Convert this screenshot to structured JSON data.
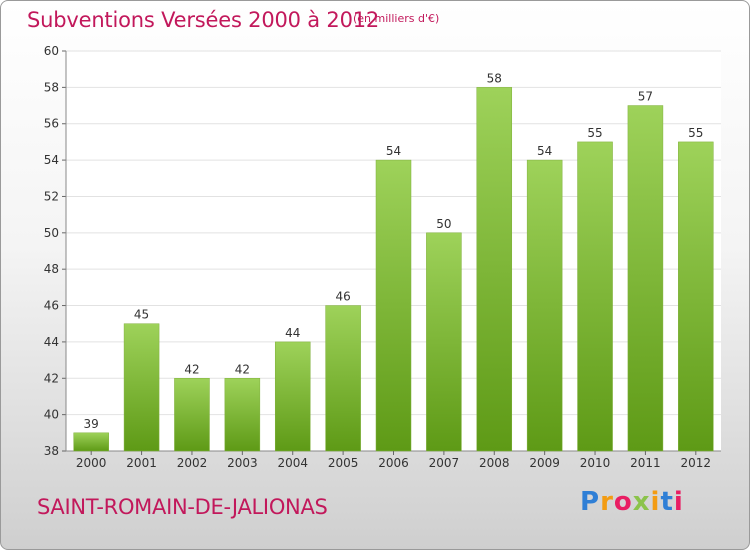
{
  "title": "Subventions Versées 2000 à 2012",
  "subtitle": "(en milliers d'€)",
  "town": "SAINT-ROMAIN-DE-JALIONAS",
  "logo": {
    "letters": [
      {
        "char": "P",
        "color": "#2f7fd6"
      },
      {
        "char": "r",
        "color": "#f39c12"
      },
      {
        "char": "o",
        "color": "#e91e63"
      },
      {
        "char": "x",
        "color": "#8bc34a"
      },
      {
        "char": "i",
        "color": "#f39c12"
      },
      {
        "char": "t",
        "color": "#2f7fd6"
      },
      {
        "char": "i",
        "color": "#e91e63"
      }
    ]
  },
  "colors": {
    "bar_top": "#9ed25a",
    "bar_bottom": "#5e9a16",
    "axis_text": "#333333",
    "grid": "#e2e2e2",
    "title": "#c2185b"
  },
  "chart_data": {
    "type": "bar",
    "categories": [
      "2000",
      "2001",
      "2002",
      "2003",
      "2004",
      "2005",
      "2006",
      "2007",
      "2008",
      "2009",
      "2010",
      "2011",
      "2012"
    ],
    "values": [
      39,
      45,
      42,
      42,
      44,
      46,
      54,
      50,
      58,
      54,
      55,
      57,
      55
    ],
    "title": "Subventions Versées 2000 à 2012",
    "xlabel": "",
    "ylabel": "",
    "ylim": [
      38,
      60
    ],
    "yticks": [
      38,
      40,
      42,
      44,
      46,
      48,
      50,
      52,
      54,
      56,
      58,
      60
    ],
    "grid": true,
    "data_labels": true
  }
}
